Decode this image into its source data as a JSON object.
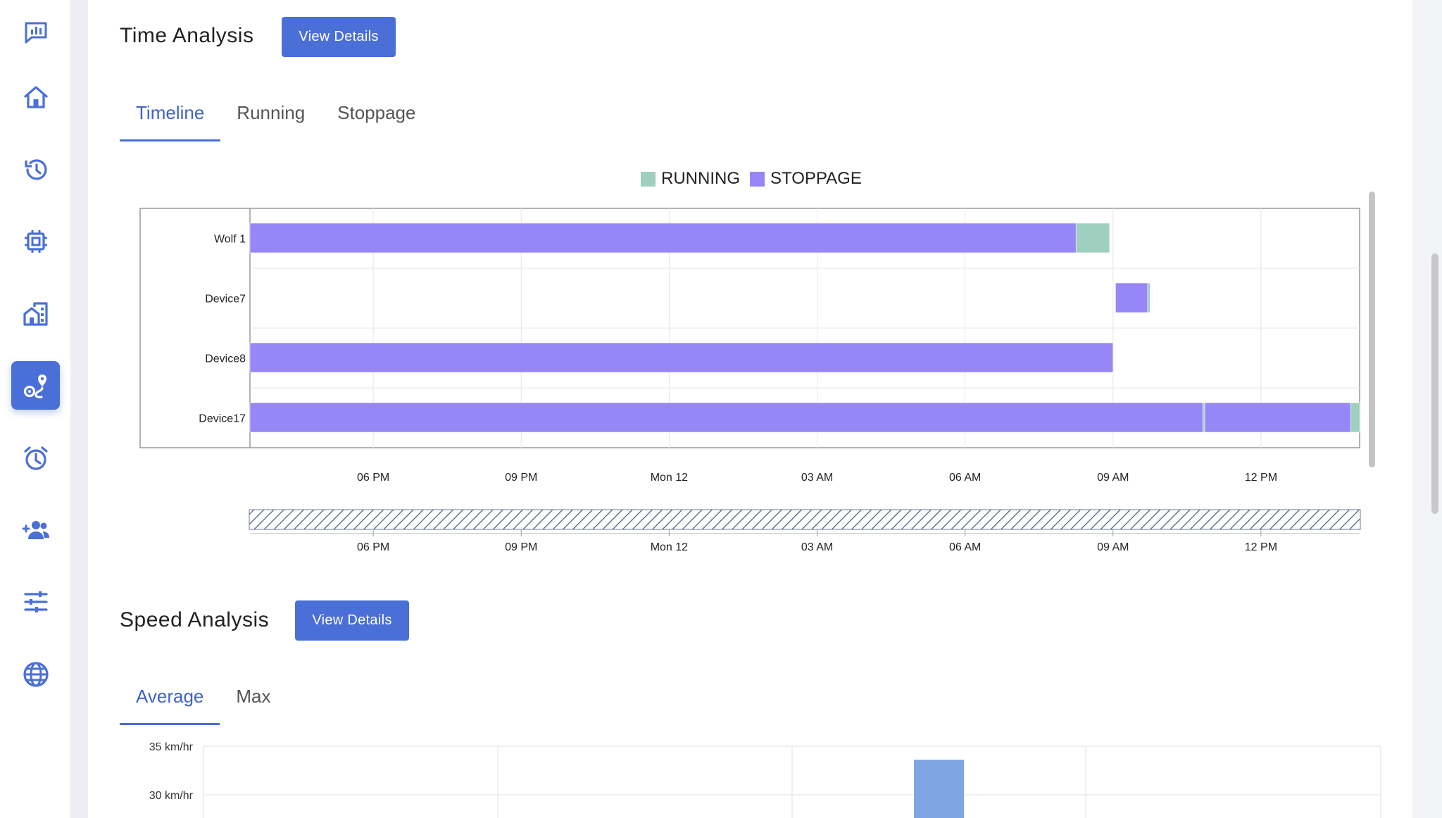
{
  "sidebar": {
    "items": [
      {
        "icon": "chat-analytics-icon"
      },
      {
        "icon": "home-icon"
      },
      {
        "icon": "history-icon"
      },
      {
        "icon": "chip-icon"
      },
      {
        "icon": "buildings-icon"
      },
      {
        "icon": "route-icon",
        "active": true
      },
      {
        "icon": "alarm-icon"
      },
      {
        "icon": "add-users-icon"
      },
      {
        "icon": "sliders-icon"
      },
      {
        "icon": "globe-icon"
      }
    ],
    "accent": "#4a6fd6"
  },
  "time_analysis": {
    "title": "Time Analysis",
    "button_label": "View Details",
    "tabs": [
      {
        "label": "Timeline",
        "active": true
      },
      {
        "label": "Running",
        "active": false
      },
      {
        "label": "Stoppage",
        "active": false
      }
    ],
    "legend": [
      {
        "label": "RUNNING",
        "color": "#9ecfbf"
      },
      {
        "label": "STOPPAGE",
        "color": "#9786f5"
      }
    ]
  },
  "speed_analysis": {
    "title": "Speed Analysis",
    "button_label": "View Details",
    "tabs": [
      {
        "label": "Average",
        "active": true
      },
      {
        "label": "Max",
        "active": false
      }
    ]
  },
  "chart_data": [
    {
      "type": "bar",
      "subtype": "timeline",
      "categories": [
        "Wolf 1",
        "Device7",
        "Device8",
        "Device17"
      ],
      "x_ticks": [
        "06 PM",
        "09 PM",
        "Mon 12",
        "03 AM",
        "06 AM",
        "09 AM",
        "12 PM"
      ],
      "x_tick_hours": [
        18,
        21,
        24,
        27,
        30,
        33,
        36
      ],
      "xlim_hours": [
        15.5,
        38.0
      ],
      "navigator_ticks": [
        "06 PM",
        "09 PM",
        "Mon 12",
        "03 AM",
        "06 AM",
        "09 AM",
        "12 PM"
      ],
      "segments": [
        {
          "row": "Wolf 1",
          "status": "STOPPAGE",
          "start": 15.5,
          "end": 32.25
        },
        {
          "row": "Wolf 1",
          "status": "RUNNING",
          "start": 32.25,
          "end": 32.93
        },
        {
          "row": "Device7",
          "status": "STOPPAGE",
          "start": 33.05,
          "end": 33.7
        },
        {
          "row": "Device7",
          "status": "RUNNING",
          "start": 33.7,
          "end": 33.75
        },
        {
          "row": "Device8",
          "status": "STOPPAGE",
          "start": 15.5,
          "end": 33.0
        },
        {
          "row": "Device17",
          "status": "STOPPAGE",
          "start": 15.5,
          "end": 34.82
        },
        {
          "row": "Device17",
          "status": "RUNNING",
          "start": 34.82,
          "end": 34.86
        },
        {
          "row": "Device17",
          "status": "STOPPAGE",
          "start": 34.86,
          "end": 37.82
        },
        {
          "row": "Device17",
          "status": "RUNNING",
          "start": 37.82,
          "end": 38.0
        }
      ],
      "grid": true,
      "legend_position": "top-center"
    },
    {
      "type": "bar",
      "y_ticks": [
        "35 km/hr",
        "30 km/hr"
      ],
      "y_tick_values": [
        35,
        30
      ],
      "ylabel": "",
      "ylim": [
        25,
        35
      ],
      "values": [
        33.6
      ],
      "bar_color": "#7fa6e3",
      "grid": true
    }
  ]
}
